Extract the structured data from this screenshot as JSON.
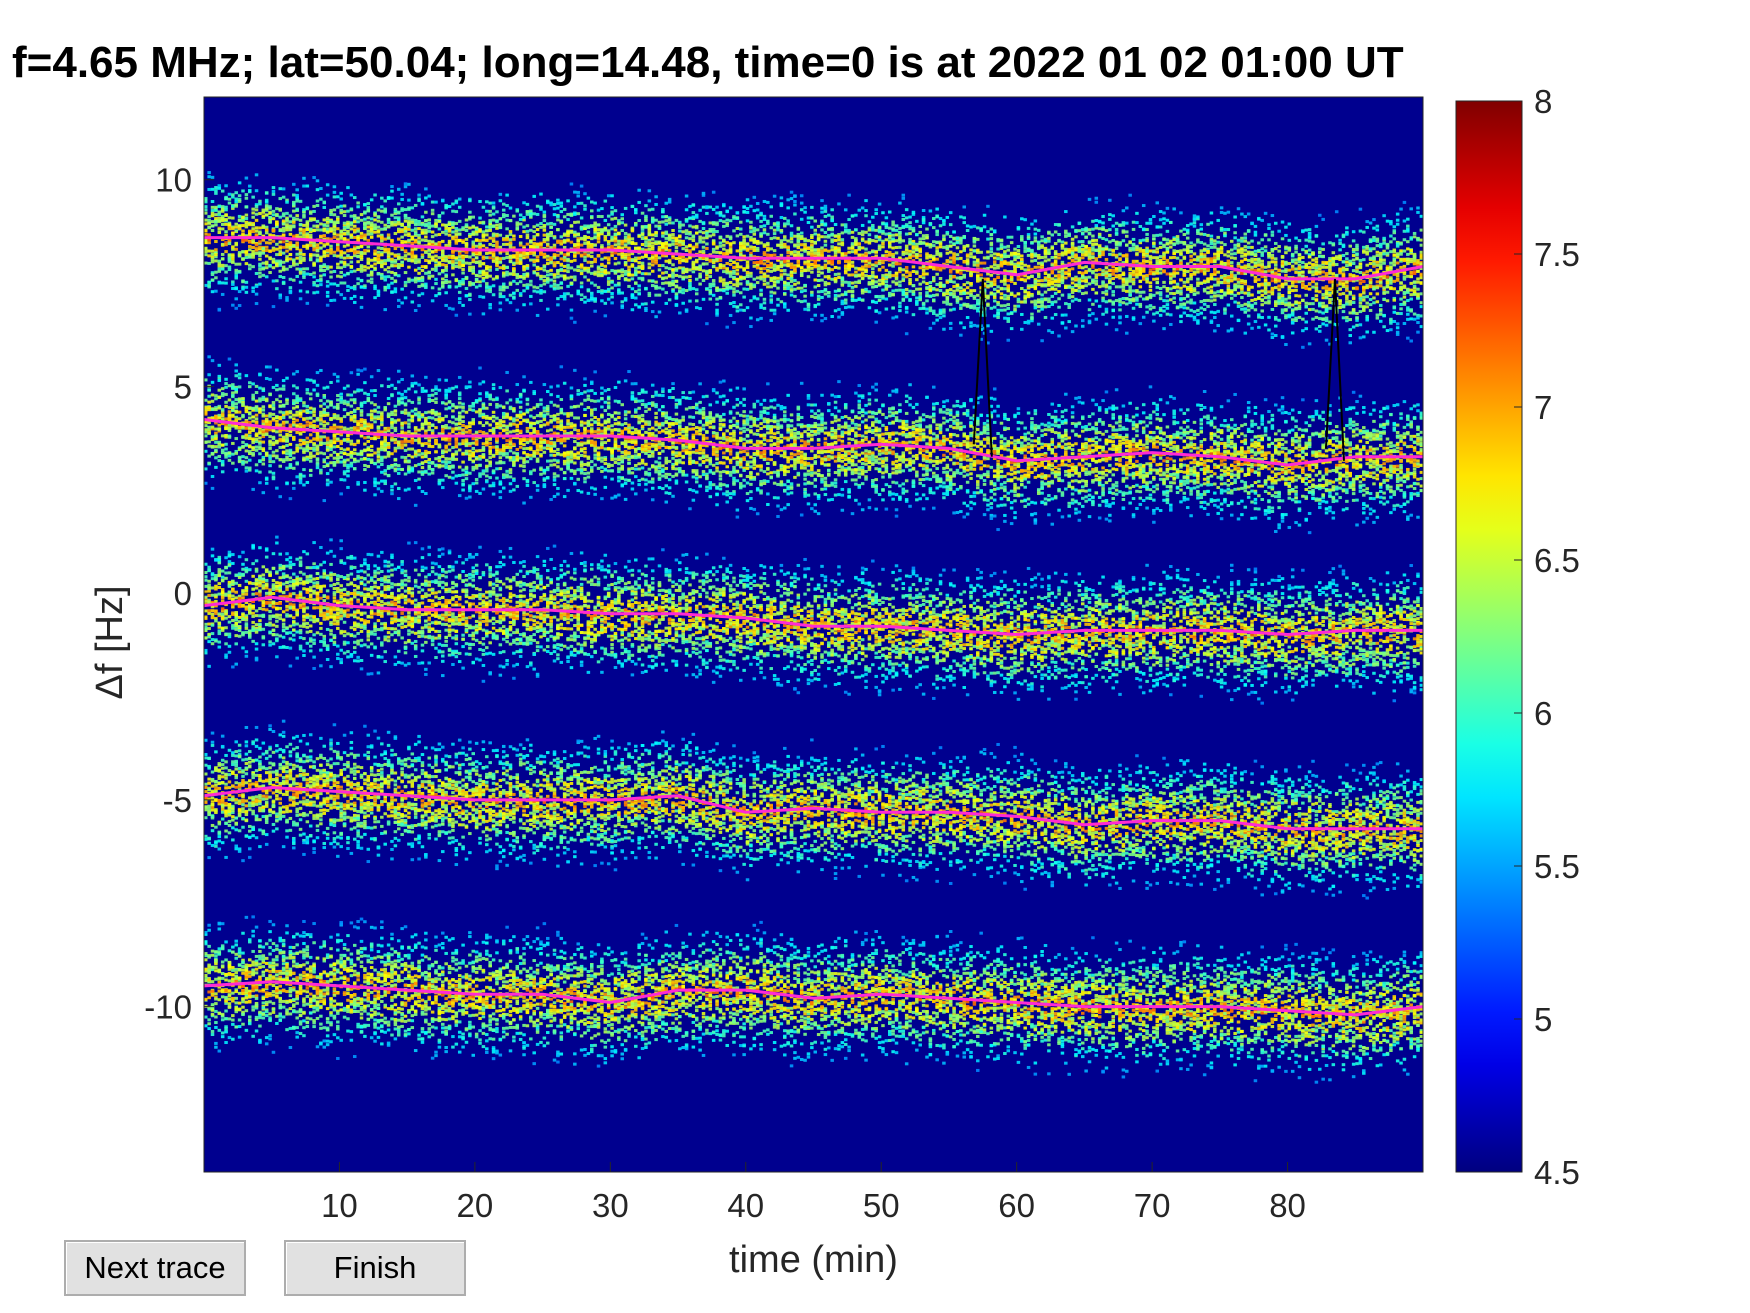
{
  "title": "f=4.65 MHz;  lat=50.04; long=14.48, time=0 is at 2022 01 02 01:00 UT",
  "buttons": {
    "next_trace": "Next trace",
    "finish": "Finish"
  },
  "chart_data": {
    "type": "heatmap",
    "title": "f=4.65 MHz;  lat=50.04; long=14.48, time=0 is at 2022 01 02 01:00 UT",
    "xlabel": "time (min)",
    "ylabel": "Δf [Hz]",
    "xlim": [
      0,
      90
    ],
    "ylim": [
      -14,
      12
    ],
    "xticks": [
      10,
      20,
      30,
      40,
      50,
      60,
      70,
      80
    ],
    "yticks": [
      10,
      5,
      0,
      -5,
      -10
    ],
    "colorbar": {
      "min": 4.5,
      "max": 8,
      "ticks": [
        "8",
        "7.5",
        "7",
        "6.5",
        "6",
        "5.5",
        "5",
        "4.5"
      ],
      "colormap": "jet"
    },
    "background_color": "#00008f",
    "trace_color": "#ff2ad4",
    "traces": [
      {
        "x": [
          0,
          5,
          10,
          15,
          20,
          25,
          30,
          35,
          40,
          45,
          50,
          55,
          60,
          65,
          70,
          75,
          80,
          85,
          90
        ],
        "y": [
          8.6,
          8.6,
          8.5,
          8.4,
          8.3,
          8.3,
          8.3,
          8.2,
          8.1,
          8.1,
          8.1,
          7.9,
          7.7,
          8.0,
          7.9,
          7.9,
          7.6,
          7.6,
          7.9
        ]
      },
      {
        "x": [
          0,
          5,
          10,
          15,
          20,
          25,
          30,
          35,
          40,
          45,
          50,
          55,
          60,
          65,
          70,
          75,
          80,
          85,
          90
        ],
        "y": [
          4.2,
          4.0,
          3.9,
          3.8,
          3.8,
          3.8,
          3.8,
          3.7,
          3.5,
          3.5,
          3.6,
          3.5,
          3.2,
          3.3,
          3.4,
          3.3,
          3.1,
          3.3,
          3.3
        ]
      },
      {
        "x": [
          0,
          5,
          10,
          15,
          20,
          25,
          30,
          35,
          40,
          45,
          50,
          55,
          60,
          65,
          70,
          75,
          80,
          85,
          90
        ],
        "y": [
          -0.3,
          -0.1,
          -0.3,
          -0.4,
          -0.4,
          -0.4,
          -0.5,
          -0.5,
          -0.6,
          -0.8,
          -0.8,
          -0.9,
          -1.0,
          -0.9,
          -0.9,
          -0.9,
          -1.0,
          -0.9,
          -0.9
        ]
      },
      {
        "x": [
          0,
          5,
          10,
          15,
          20,
          25,
          30,
          35,
          40,
          45,
          50,
          55,
          60,
          65,
          70,
          75,
          80,
          85,
          90
        ],
        "y": [
          -4.9,
          -4.7,
          -4.8,
          -4.9,
          -5.0,
          -5.0,
          -5.0,
          -4.9,
          -5.3,
          -5.2,
          -5.3,
          -5.3,
          -5.4,
          -5.6,
          -5.5,
          -5.5,
          -5.7,
          -5.7,
          -5.7
        ]
      },
      {
        "x": [
          0,
          5,
          10,
          15,
          20,
          25,
          30,
          35,
          40,
          45,
          50,
          55,
          60,
          65,
          70,
          75,
          80,
          85,
          90
        ],
        "y": [
          -9.5,
          -9.4,
          -9.5,
          -9.6,
          -9.7,
          -9.7,
          -9.9,
          -9.6,
          -9.6,
          -9.8,
          -9.7,
          -9.8,
          -9.9,
          -10.0,
          -10.0,
          -10.0,
          -10.1,
          -10.2,
          -10.0
        ]
      }
    ],
    "markers": [
      {
        "x": 57.5,
        "y_from": 3.6,
        "y_to": 7.6
      },
      {
        "x": 83.5,
        "y_from": 3.5,
        "y_to": 7.6
      }
    ]
  }
}
